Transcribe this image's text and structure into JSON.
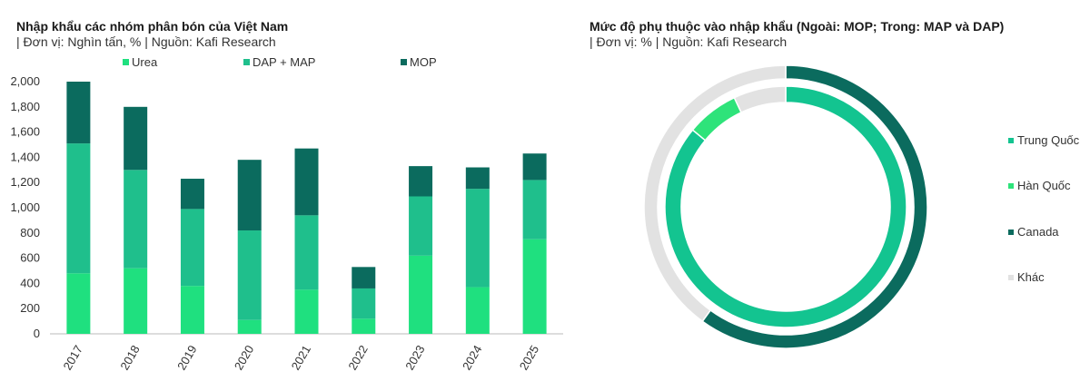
{
  "colors": {
    "urea": "#1fe07f",
    "dap_map": "#1fbf8c",
    "mop": "#0b6b5e",
    "trung_quoc": "#13c490",
    "han_quoc": "#2ee37a",
    "canada": "#0b6b5e",
    "khac": "#e2e2e2",
    "axis": "#bbbbbb"
  },
  "left": {
    "title": "Nhập khẩu các nhóm phân bón của Việt Nam",
    "subtitle": "| Đơn vị: Nghìn tấn, % | Nguồn: Kafi Research"
  },
  "right": {
    "title": "Mức độ phụ thuộc vào nhập khẩu (Ngoài: MOP; Trong: MAP và DAP)",
    "subtitle": "| Đơn vị: % | Nguồn: Kafi Research"
  },
  "chart_data": [
    {
      "type": "bar",
      "stacked": true,
      "categories": [
        "2017",
        "2018",
        "2019",
        "2020",
        "2021",
        "2022",
        "2023",
        "2024",
        "2025"
      ],
      "series": [
        {
          "name": "Urea",
          "values": [
            480,
            520,
            380,
            110,
            350,
            120,
            620,
            370,
            750
          ]
        },
        {
          "name": "DAP + MAP",
          "values": [
            1030,
            780,
            610,
            710,
            590,
            240,
            470,
            780,
            470
          ]
        },
        {
          "name": "MOP",
          "values": [
            490,
            500,
            240,
            560,
            530,
            170,
            240,
            170,
            210
          ]
        }
      ],
      "yticks": [
        "0",
        "200",
        "400",
        "600",
        "800",
        "1,000",
        "1,200",
        "1,400",
        "1,600",
        "1,800",
        "2,000"
      ],
      "ylim": [
        0,
        2000
      ],
      "legend_position": "top",
      "grid": false
    },
    {
      "type": "pie",
      "variant": "double-donut",
      "legend": [
        "Trung Quốc",
        "Hàn Quốc",
        "Canada",
        "Khác"
      ],
      "legend_position": "right",
      "outer_ring": {
        "slices": [
          {
            "name": "Canada",
            "value": 60
          },
          {
            "name": "Khác",
            "value": 40
          }
        ]
      },
      "inner_ring": {
        "slices": [
          {
            "name": "Trung Quốc",
            "value": 86
          },
          {
            "name": "Hàn Quốc",
            "value": 7
          },
          {
            "name": "Khác",
            "value": 7
          }
        ]
      }
    }
  ]
}
